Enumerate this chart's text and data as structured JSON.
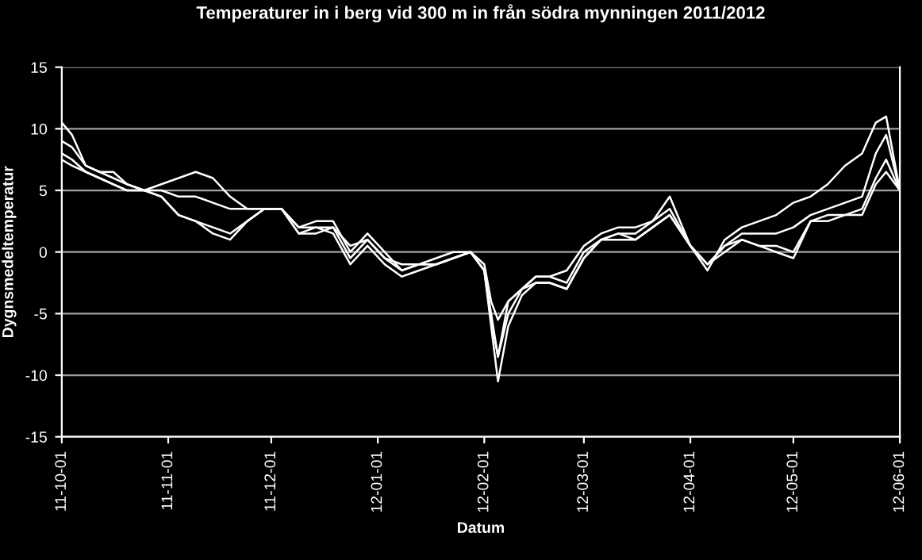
{
  "chart_data": {
    "type": "line",
    "title": "Temperaturer in i berg vid 300 m in från södra mynningen 2011/2012",
    "xlabel": "Datum",
    "ylabel": "Dygnsmedeltemperatur",
    "x": [
      "2011-10-01",
      "2011-10-04",
      "2011-10-08",
      "2011-10-12",
      "2011-10-16",
      "2011-10-20",
      "2011-10-25",
      "2011-10-30",
      "2011-11-04",
      "2011-11-09",
      "2011-11-14",
      "2011-11-19",
      "2011-11-24",
      "2011-11-29",
      "2011-12-04",
      "2011-12-09",
      "2011-12-14",
      "2011-12-19",
      "2011-12-24",
      "2011-12-29",
      "2012-01-03",
      "2012-01-08",
      "2012-01-13",
      "2012-01-18",
      "2012-01-23",
      "2012-01-28",
      "2012-02-01",
      "2012-02-03",
      "2012-02-05",
      "2012-02-08",
      "2012-02-12",
      "2012-02-16",
      "2012-02-20",
      "2012-02-25",
      "2012-03-01",
      "2012-03-06",
      "2012-03-11",
      "2012-03-16",
      "2012-03-21",
      "2012-03-26",
      "2012-04-01",
      "2012-04-06",
      "2012-04-11",
      "2012-04-16",
      "2012-04-21",
      "2012-04-26",
      "2012-05-01",
      "2012-05-06",
      "2012-05-11",
      "2012-05-16",
      "2012-05-21",
      "2012-05-25",
      "2012-05-28",
      "2012-06-01"
    ],
    "series": [
      {
        "color": "#ffffff",
        "values": [
          10.5,
          9.5,
          7,
          6.5,
          6.5,
          5.5,
          5,
          5.5,
          6,
          6.5,
          6,
          4.5,
          3.5,
          3.5,
          3.5,
          2,
          2.5,
          2.5,
          0,
          1.5,
          0,
          -1.5,
          -1,
          -1,
          -0.5,
          0,
          -1,
          -4,
          -5.5,
          -4,
          -3,
          -2,
          -2,
          -1.5,
          0.5,
          1.5,
          2,
          2,
          2.5,
          4.5,
          0.5,
          -1.5,
          1,
          2,
          2.5,
          3,
          4,
          4.5,
          5.5,
          7,
          8,
          10.5,
          11,
          5
        ]
      },
      {
        "color": "#ffffff",
        "values": [
          9,
          8.5,
          7,
          6.5,
          6,
          5.5,
          5,
          5,
          4.5,
          4.5,
          4,
          3.5,
          3.5,
          3.5,
          3.5,
          2,
          2,
          2,
          0.5,
          1,
          -0.5,
          -1,
          -1,
          -0.5,
          0,
          0,
          -1.5,
          -5,
          -8.5,
          -4,
          -3,
          -2,
          -2,
          -2.5,
          0,
          1,
          1.5,
          1.5,
          2.5,
          3.5,
          0.5,
          -1,
          0.5,
          1.5,
          1.5,
          1.5,
          2,
          3,
          3.5,
          4,
          4.5,
          8,
          9.5,
          5
        ]
      },
      {
        "color": "#ffffff",
        "values": [
          8,
          7.5,
          6.5,
          6,
          5.5,
          5,
          5,
          4.5,
          3,
          2.5,
          2,
          1.5,
          2.5,
          3.5,
          3.5,
          1.5,
          1.5,
          2,
          -0.5,
          1,
          -0.5,
          -1.5,
          -1,
          -1,
          -0.5,
          0,
          -1.5,
          -6,
          -10.5,
          -6,
          -3.5,
          -2.5,
          -2.5,
          -3,
          -0.5,
          1,
          1.5,
          1,
          2,
          3,
          0.5,
          -1,
          0.5,
          1,
          0.5,
          0.5,
          0,
          2.5,
          3,
          3,
          3.5,
          6,
          7.5,
          5
        ]
      },
      {
        "color": "#ffffff",
        "values": [
          7.5,
          7,
          6.5,
          6,
          5.5,
          5,
          5,
          4.5,
          3,
          2.5,
          1.5,
          1,
          2.5,
          3.5,
          3.5,
          1.5,
          2,
          1.5,
          -1,
          0.5,
          -1,
          -2,
          -1.5,
          -1,
          -0.5,
          0,
          -1.5,
          -5.5,
          -8.5,
          -5,
          -3,
          -2.5,
          -2.5,
          -3,
          -0.5,
          1,
          1,
          1,
          2,
          3,
          0.5,
          -1,
          0,
          1,
          0.5,
          0,
          -0.5,
          2.5,
          2.5,
          3,
          3,
          5.5,
          6.5,
          5
        ]
      }
    ],
    "xlim": [
      "2011-10-01",
      "2012-06-01"
    ],
    "xticks": [
      {
        "value": "2011-10-01",
        "label": "11-10-01"
      },
      {
        "value": "2011-11-01",
        "label": "11-11-01"
      },
      {
        "value": "2011-12-01",
        "label": "11-12-01"
      },
      {
        "value": "2012-01-01",
        "label": "12-01-01"
      },
      {
        "value": "2012-02-01",
        "label": "12-02-01"
      },
      {
        "value": "2012-03-01",
        "label": "12-03-01"
      },
      {
        "value": "2012-04-01",
        "label": "12-04-01"
      },
      {
        "value": "2012-05-01",
        "label": "12-05-01"
      },
      {
        "value": "2012-06-01",
        "label": "12-06-01"
      }
    ],
    "ylim": [
      -15,
      15
    ],
    "yticks": [
      -15,
      -10,
      -5,
      0,
      5,
      10,
      15
    ],
    "grid": "y",
    "marker": "none",
    "line_style": "solid"
  }
}
